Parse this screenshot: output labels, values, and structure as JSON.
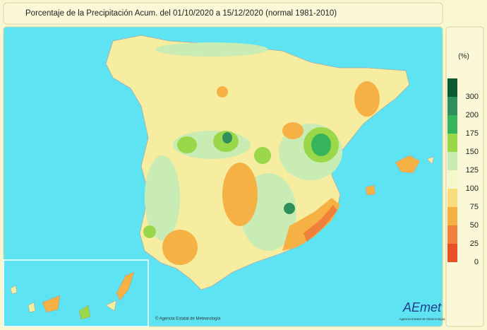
{
  "header": {
    "title": "Porcentaje de la Precipitación Acum. del 01/10/2020 a  15/12/2020  (normal 1981-2010)"
  },
  "legend": {
    "unit": "(%)",
    "items": [
      {
        "label": "300",
        "color": "#0b5a32"
      },
      {
        "label": "200",
        "color": "#2f8f5a"
      },
      {
        "label": "175",
        "color": "#35b45c"
      },
      {
        "label": "150",
        "color": "#9ad84a"
      },
      {
        "label": "125",
        "color": "#c9ecb4"
      },
      {
        "label": "100",
        "color": "#f4f8cc"
      },
      {
        "label": "75",
        "color": "#fbdc7c"
      },
      {
        "label": "50",
        "color": "#f6b145"
      },
      {
        "label": "25",
        "color": "#f0813a"
      },
      {
        "label": "0",
        "color": "#e8502a"
      }
    ]
  },
  "footer": {
    "copyright": "© Agencia Estatal de Meteorología",
    "logo": "AEmet",
    "logo_caption": "Agencia Estatal de Meteorología"
  }
}
